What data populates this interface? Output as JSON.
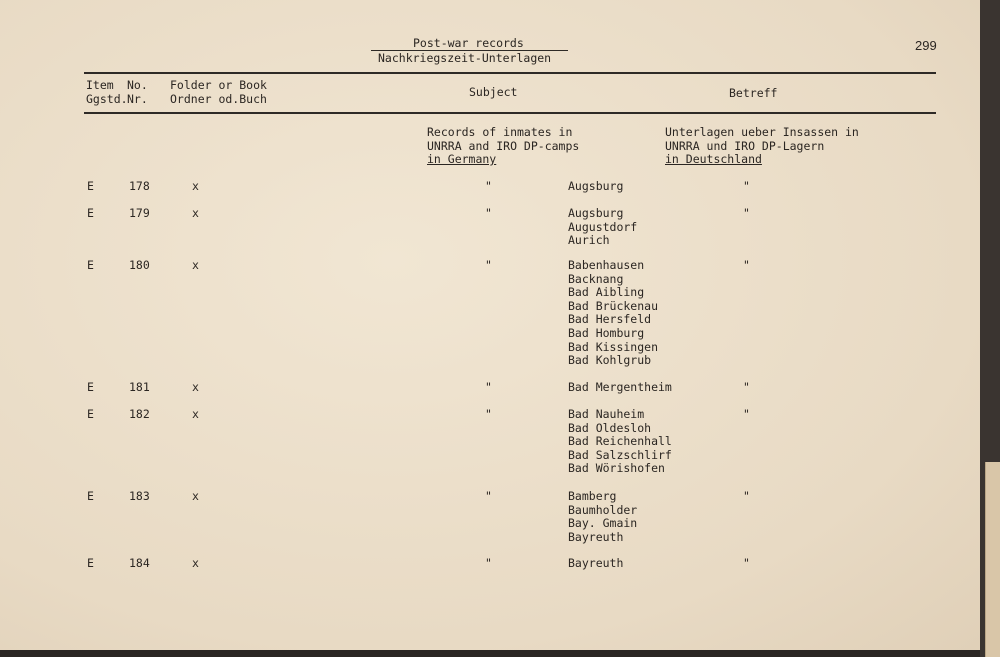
{
  "header": {
    "title_en": "Post-war records",
    "title_de": "Nachkriegszeit-Unterlagen",
    "page_number": "299"
  },
  "columns": {
    "item": "Item\nGgstd.",
    "no": "No.\nNr.",
    "folder": "Folder or Book\nOrdner od.Buch",
    "subject": "Subject",
    "betreff": "Betreff"
  },
  "intro": {
    "subject": "Records of inmates in\nUNRRA and IRO DP-camps",
    "subject_ul": "in Germany",
    "betreff": "Unterlagen ueber Insassen in\nUNRRA und IRO DP-Lagern",
    "betreff_ul": "in Deutschland"
  },
  "rows": [
    {
      "item": "E",
      "no": "178",
      "folder": "x",
      "subject": "\"",
      "places": "Augsburg",
      "betreff": "\""
    },
    {
      "item": "E",
      "no": "179",
      "folder": "x",
      "subject": "\"",
      "places": "Augsburg\nAugustdorf\nAurich",
      "betreff": "\""
    },
    {
      "item": "E",
      "no": "180",
      "folder": "x",
      "subject": "\"",
      "places": "Babenhausen\nBacknang\nBad Aibling\nBad Brückenau\nBad Hersfeld\nBad Homburg\nBad Kissingen\nBad Kohlgrub",
      "betreff": "\""
    },
    {
      "item": "E",
      "no": "181",
      "folder": "x",
      "subject": "\"",
      "places": "Bad Mergentheim",
      "betreff": "\""
    },
    {
      "item": "E",
      "no": "182",
      "folder": "x",
      "subject": "\"",
      "places": "Bad Nauheim\nBad Oldesloh\nBad Reichenhall\nBad Salzschlirf\nBad Wörishofen",
      "betreff": "\""
    },
    {
      "item": "E",
      "no": "183",
      "folder": "x",
      "subject": "\"",
      "places": "Bamberg\nBaumholder\nBay. Gmain\nBayreuth",
      "betreff": "\""
    },
    {
      "item": "E",
      "no": "184",
      "folder": "x",
      "subject": "\"",
      "places": "Bayreuth",
      "betreff": "\""
    }
  ]
}
